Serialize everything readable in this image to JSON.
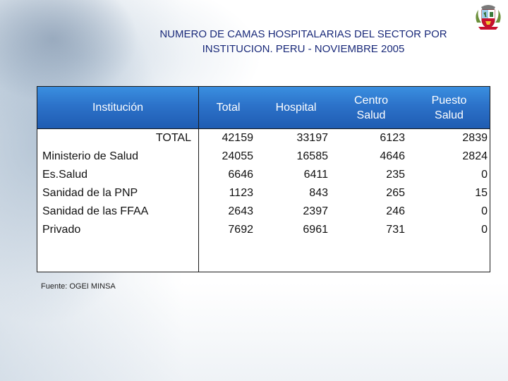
{
  "title": {
    "line1": "NUMERO DE CAMAS HOSPITALARIAS DEL SECTOR POR",
    "line2": "INSTITUCION. PERU - NOVIEMBRE 2005"
  },
  "table": {
    "headers": {
      "institucion": "Institución",
      "total": "Total",
      "hospital": "Hospital",
      "centro_salud_1": "Centro",
      "centro_salud_2": "Salud",
      "puesto_salud_1": "Puesto",
      "puesto_salud_2": "Salud"
    },
    "rows": [
      {
        "institucion": "TOTAL",
        "total": "42159",
        "hospital": "33197",
        "centro": "6123",
        "puesto": "2839"
      },
      {
        "institucion": "Ministerio de Salud",
        "total": "24055",
        "hospital": "16585",
        "centro": "4646",
        "puesto": "2824"
      },
      {
        "institucion": "Es.Salud",
        "total": "6646",
        "hospital": "6411",
        "centro": "235",
        "puesto": "0"
      },
      {
        "institucion": "Sanidad de la PNP",
        "total": "1123",
        "hospital": "843",
        "centro": "265",
        "puesto": "15"
      },
      {
        "institucion": "Sanidad de las FFAA",
        "total": "2643",
        "hospital": "2397",
        "centro": "246",
        "puesto": "0"
      },
      {
        "institucion": "Privado",
        "total": "7692",
        "hospital": "6961",
        "centro": "731",
        "puesto": "0"
      }
    ]
  },
  "source": "Fuente: OGEI MINSA",
  "colors": {
    "header_bg": "#2c72c9",
    "title_text": "#1a2a7a",
    "crest_red": "#c8102e"
  },
  "icons": {
    "crest": "peru-coat-of-arms-icon"
  }
}
